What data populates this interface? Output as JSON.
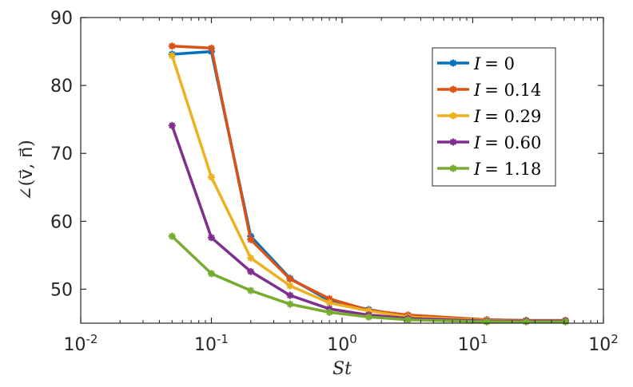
{
  "chart_data": {
    "type": "line",
    "xscale": "log",
    "xlim": [
      0.01,
      100
    ],
    "ylim": [
      45,
      90
    ],
    "xlabel": "St",
    "ylabel": "∠(v⃗, n⃗)",
    "xticks": [
      {
        "value": 0.01,
        "base": "10",
        "exp": "-2"
      },
      {
        "value": 0.1,
        "base": "10",
        "exp": "-1"
      },
      {
        "value": 1,
        "base": "10",
        "exp": "0"
      },
      {
        "value": 10,
        "base": "10",
        "exp": "1"
      },
      {
        "value": 100,
        "base": "10",
        "exp": "2"
      }
    ],
    "yticks": [
      50,
      60,
      70,
      80,
      90
    ],
    "legend_position": "top-right",
    "x": [
      0.05,
      0.1,
      0.2,
      0.4,
      0.8,
      1.6,
      3.2,
      12.8,
      25.6,
      51.2
    ],
    "series": [
      {
        "name": "I = 0",
        "symbol": "I",
        "value_text": "= 0",
        "color": "#0072BD",
        "values": [
          84.6,
          85.0,
          57.8,
          51.6,
          48.3,
          47.0,
          46.0,
          45.5,
          45.4,
          45.4
        ]
      },
      {
        "name": "I = 0.14",
        "symbol": "I",
        "value_text": "= 0.14",
        "color": "#D95319",
        "values": [
          85.8,
          85.5,
          57.3,
          51.5,
          48.6,
          46.9,
          46.2,
          45.5,
          45.4,
          45.4
        ]
      },
      {
        "name": "I = 0.29",
        "symbol": "I",
        "value_text": "= 0.29",
        "color": "#EDB120",
        "values": [
          84.4,
          66.5,
          54.6,
          50.5,
          48.0,
          46.8,
          45.9,
          45.4,
          45.3,
          45.3
        ]
      },
      {
        "name": "I = 0.60",
        "symbol": "I",
        "value_text": "= 0.60",
        "color": "#7E2F8E",
        "values": [
          74.1,
          57.6,
          52.6,
          49.1,
          47.1,
          46.2,
          45.7,
          45.3,
          45.3,
          45.3
        ]
      },
      {
        "name": "I = 1.18",
        "symbol": "I",
        "value_text": "= 1.18",
        "color": "#77AC30",
        "values": [
          57.8,
          52.3,
          49.8,
          47.8,
          46.6,
          45.9,
          45.5,
          45.2,
          45.2,
          45.2
        ]
      }
    ]
  }
}
